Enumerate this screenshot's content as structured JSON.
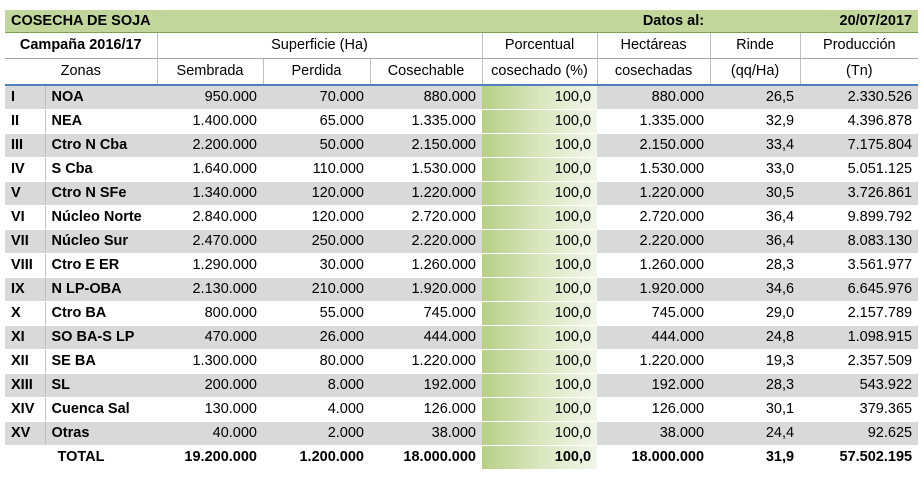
{
  "title": "COSECHA DE SOJA",
  "date_label": "Datos al:",
  "date_value": "20/07/2017",
  "campaign": "Campaña 2016/17",
  "surface_header": "Superficie (Ha)",
  "headers": {
    "zonas": "Zonas",
    "sembrada": "Sembrada",
    "perdida": "Perdida",
    "cosechable": "Cosechable",
    "porcentual_1": "Porcentual",
    "porcentual_2": "cosechado (%)",
    "hectareas_1": "Hectáreas",
    "hectareas_2": "cosechadas",
    "rinde_1": "Rinde",
    "rinde_2": "(qq/Ha)",
    "produccion_1": "Producción",
    "produccion_2": "(Tn)"
  },
  "rows": [
    {
      "num": "I",
      "zona": "NOA",
      "sembrada": "950.000",
      "perdida": "70.000",
      "cosechable": "880.000",
      "pct": "100,0",
      "hect": "880.000",
      "rinde": "26,5",
      "prod": "2.330.526"
    },
    {
      "num": "II",
      "zona": "NEA",
      "sembrada": "1.400.000",
      "perdida": "65.000",
      "cosechable": "1.335.000",
      "pct": "100,0",
      "hect": "1.335.000",
      "rinde": "32,9",
      "prod": "4.396.878"
    },
    {
      "num": "III",
      "zona": "Ctro N Cba",
      "sembrada": "2.200.000",
      "perdida": "50.000",
      "cosechable": "2.150.000",
      "pct": "100,0",
      "hect": "2.150.000",
      "rinde": "33,4",
      "prod": "7.175.804"
    },
    {
      "num": "IV",
      "zona": "S Cba",
      "sembrada": "1.640.000",
      "perdida": "110.000",
      "cosechable": "1.530.000",
      "pct": "100,0",
      "hect": "1.530.000",
      "rinde": "33,0",
      "prod": "5.051.125"
    },
    {
      "num": "V",
      "zona": "Ctro N SFe",
      "sembrada": "1.340.000",
      "perdida": "120.000",
      "cosechable": "1.220.000",
      "pct": "100,0",
      "hect": "1.220.000",
      "rinde": "30,5",
      "prod": "3.726.861"
    },
    {
      "num": "VI",
      "zona": "Núcleo Norte",
      "sembrada": "2.840.000",
      "perdida": "120.000",
      "cosechable": "2.720.000",
      "pct": "100,0",
      "hect": "2.720.000",
      "rinde": "36,4",
      "prod": "9.899.792"
    },
    {
      "num": "VII",
      "zona": "Núcleo Sur",
      "sembrada": "2.470.000",
      "perdida": "250.000",
      "cosechable": "2.220.000",
      "pct": "100,0",
      "hect": "2.220.000",
      "rinde": "36,4",
      "prod": "8.083.130"
    },
    {
      "num": "VIII",
      "zona": "Ctro E ER",
      "sembrada": "1.290.000",
      "perdida": "30.000",
      "cosechable": "1.260.000",
      "pct": "100,0",
      "hect": "1.260.000",
      "rinde": "28,3",
      "prod": "3.561.977"
    },
    {
      "num": "IX",
      "zona": "N LP-OBA",
      "sembrada": "2.130.000",
      "perdida": "210.000",
      "cosechable": "1.920.000",
      "pct": "100,0",
      "hect": "1.920.000",
      "rinde": "34,6",
      "prod": "6.645.976"
    },
    {
      "num": "X",
      "zona": "Ctro BA",
      "sembrada": "800.000",
      "perdida": "55.000",
      "cosechable": "745.000",
      "pct": "100,0",
      "hect": "745.000",
      "rinde": "29,0",
      "prod": "2.157.789"
    },
    {
      "num": "XI",
      "zona": "SO BA-S LP",
      "sembrada": "470.000",
      "perdida": "26.000",
      "cosechable": "444.000",
      "pct": "100,0",
      "hect": "444.000",
      "rinde": "24,8",
      "prod": "1.098.915"
    },
    {
      "num": "XII",
      "zona": "SE BA",
      "sembrada": "1.300.000",
      "perdida": "80.000",
      "cosechable": "1.220.000",
      "pct": "100,0",
      "hect": "1.220.000",
      "rinde": "19,3",
      "prod": "2.357.509"
    },
    {
      "num": "XIII",
      "zona": "SL",
      "sembrada": "200.000",
      "perdida": "8.000",
      "cosechable": "192.000",
      "pct": "100,0",
      "hect": "192.000",
      "rinde": "28,3",
      "prod": "543.922"
    },
    {
      "num": "XIV",
      "zona": "Cuenca Sal",
      "sembrada": "130.000",
      "perdida": "4.000",
      "cosechable": "126.000",
      "pct": "100,0",
      "hect": "126.000",
      "rinde": "30,1",
      "prod": "379.365"
    },
    {
      "num": "XV",
      "zona": "Otras",
      "sembrada": "40.000",
      "perdida": "2.000",
      "cosechable": "38.000",
      "pct": "100,0",
      "hect": "38.000",
      "rinde": "24,4",
      "prod": "92.625"
    }
  ],
  "total": {
    "label": "TOTAL",
    "sembrada": "19.200.000",
    "perdida": "1.200.000",
    "cosechable": "18.000.000",
    "pct": "100,0",
    "hect": "18.000.000",
    "rinde": "31,9",
    "prod": "57.502.195"
  },
  "colors": {
    "title_bg": "#c2d69b",
    "stripe": "#d9d9d9",
    "pct_fill": "#b8cf86",
    "rule": "#4f81bd"
  }
}
